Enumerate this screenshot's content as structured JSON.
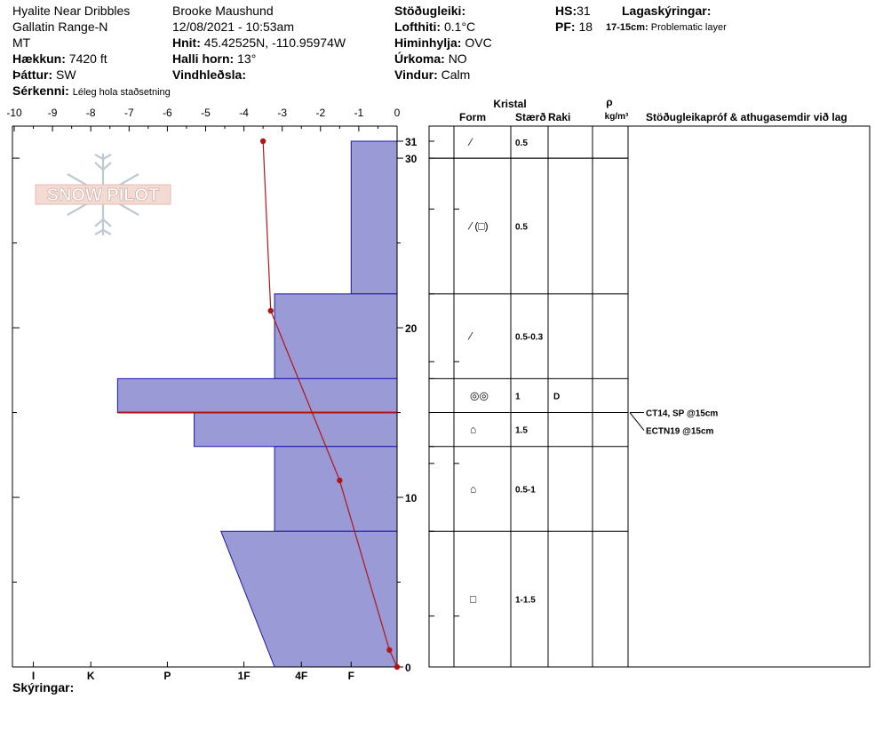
{
  "header": {
    "location_1": "Hyalite Near Dribbles",
    "location_2": "Gallatin Range-N",
    "location_3": "MT",
    "elevation_label": "Hækkun:",
    "elevation_value": "7420 ft",
    "aspect_label": "Þáttur:",
    "aspect_value": "SW",
    "notes_label": "Sérkenni:",
    "notes_value": "Léleg hola staðsetning",
    "observer": "Brooke Maushund",
    "datetime": "12/08/2021 - 10:53am",
    "coords_label": "Hnit:",
    "coords_value": "45.42525N, -110.95974W",
    "slope_label": "Halli horn:",
    "slope_value": "13°",
    "wind_loading_label": "Vindhleðsla:",
    "stability_label": "Stöðugleiki:",
    "air_temp_label": "Lofthiti:",
    "air_temp_value": "0.1°C",
    "sky_label": "Himinhylja:",
    "sky_value": "OVC",
    "precip_label": "Úrkoma:",
    "precip_value": "NO",
    "wind_label": "Vindur:",
    "wind_value": "Calm",
    "hs_label": "HS:",
    "hs_value": "31",
    "pf_label": "PF:",
    "pf_value": "18",
    "layer_notes_label": "Lagaskýringar:",
    "layer_note_range": "17-15cm:",
    "layer_note_text": "Problematic layer",
    "legend_label": "Skýringar:"
  },
  "logo_text": "SNOW PILOT",
  "table_headers": {
    "crystal": "Kristal",
    "form": "Form",
    "size": "Stærð",
    "moisture": "Raki",
    "rho": "ρ",
    "density_unit": "kg/m³",
    "tests": "Stöðugleikapróf & athugasemdir við lag"
  },
  "colors": {
    "hardness_fill": "#9a9ad6",
    "hardness_stroke": "#1a1aa0",
    "temp_line": "#b01515",
    "problem_layer": "#b01515"
  },
  "chart_data": {
    "type": "snow-profile",
    "height_axis": {
      "range": [
        0,
        31
      ],
      "ticks": [
        0,
        10,
        20,
        30,
        31
      ],
      "unit": "cm"
    },
    "temperature_axis": {
      "range": [
        -10,
        0
      ],
      "ticks": [
        "-10",
        "-9",
        "-8",
        "-7",
        "-6",
        "-5",
        "-4",
        "-3",
        "-2",
        "-1",
        "0"
      ]
    },
    "hardness_ticks": [
      {
        "label": "I",
        "temp": -9.5
      },
      {
        "label": "K",
        "temp": -8
      },
      {
        "label": "P",
        "temp": -6
      },
      {
        "label": "1F",
        "temp": -4
      },
      {
        "label": "4F",
        "temp": -2.5
      },
      {
        "label": "F",
        "temp": -1.2
      }
    ],
    "hardness_layers": [
      {
        "top": 31,
        "bottom": 22,
        "hardness_top": -1.2,
        "hardness_bottom": -1.2
      },
      {
        "top": 22,
        "bottom": 17,
        "hardness_top": -3.2,
        "hardness_bottom": -3.2
      },
      {
        "top": 17,
        "bottom": 15,
        "hardness_top": -7.3,
        "hardness_bottom": -7.3
      },
      {
        "top": 15,
        "bottom": 13,
        "hardness_top": -5.3,
        "hardness_bottom": -5.3
      },
      {
        "top": 13,
        "bottom": 8,
        "hardness_top": -3.2,
        "hardness_bottom": -3.2
      },
      {
        "top": 8,
        "bottom": 0,
        "hardness_top": -4.6,
        "hardness_bottom": -3.2
      }
    ],
    "problem_layer_height": 15,
    "temperature_profile": [
      {
        "height": 31,
        "temp": -3.5
      },
      {
        "height": 21,
        "temp": -3.3
      },
      {
        "height": 11,
        "temp": -1.5
      },
      {
        "height": 1,
        "temp": -0.2
      },
      {
        "height": 0,
        "temp": 0
      }
    ],
    "layers": [
      {
        "top": 31,
        "bottom": 30,
        "form": "slash",
        "size": "0.5",
        "moisture": ""
      },
      {
        "top": 30,
        "bottom": 22,
        "form": "slash-paren-square",
        "size": "0.5",
        "moisture": ""
      },
      {
        "top": 22,
        "bottom": 17,
        "form": "slash",
        "size": "0.5-0.3",
        "moisture": ""
      },
      {
        "top": 17,
        "bottom": 15,
        "form": "double-circle",
        "size": "1",
        "moisture": "D"
      },
      {
        "top": 15,
        "bottom": 13,
        "form": "faceted-round",
        "size": "1.5",
        "moisture": ""
      },
      {
        "top": 13,
        "bottom": 8,
        "form": "faceted-round",
        "size": "0.5-1",
        "moisture": ""
      },
      {
        "top": 8,
        "bottom": 0,
        "form": "square",
        "size": "1-1.5",
        "moisture": ""
      }
    ],
    "tests": [
      {
        "text": "CT14, SP @15cm",
        "height": 15
      },
      {
        "text": "ECTN19 @15cm",
        "height": 15
      }
    ]
  }
}
